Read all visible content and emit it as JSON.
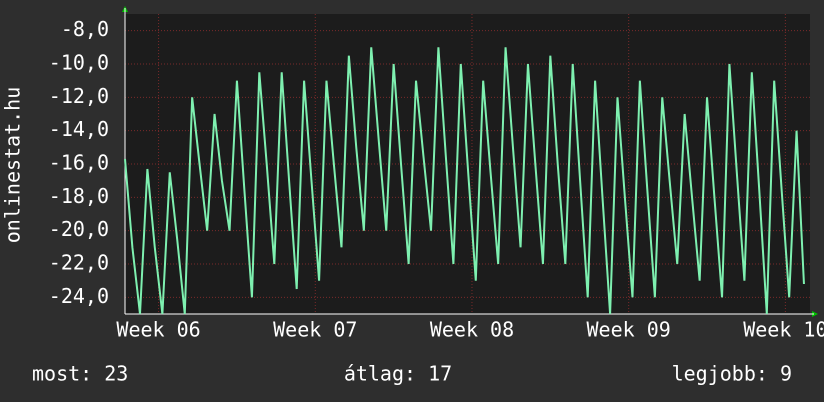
{
  "chart_data": {
    "type": "line",
    "y_label": "onlinestat.hu",
    "color": "#7ef0b0",
    "grid": true,
    "x": [
      0,
      0.33,
      0.67,
      1,
      1.33,
      1.67,
      2,
      2.33,
      2.67,
      3,
      3.33,
      3.67,
      4,
      4.33,
      4.67,
      5,
      5.33,
      5.67,
      6,
      6.33,
      6.67,
      7,
      7.33,
      7.67,
      8,
      8.33,
      8.67,
      9,
      9.33,
      9.67,
      10,
      10.33,
      10.67,
      11,
      11.33,
      11.67,
      12,
      12.33,
      12.67,
      13,
      13.33,
      13.67,
      14,
      14.33,
      14.67,
      15,
      15.33,
      15.67,
      16,
      16.33,
      16.67,
      17,
      17.33,
      17.67,
      18,
      18.33,
      18.67,
      19,
      19.33,
      19.67,
      20,
      20.33,
      20.67,
      21,
      21.33,
      21.67,
      22,
      22.33,
      22.67,
      23,
      23.33,
      23.67,
      24,
      24.33,
      24.67,
      25,
      25.33,
      25.67,
      26,
      26.33,
      26.67,
      27,
      27.33,
      27.67,
      28,
      28.33,
      28.67,
      29,
      29.33,
      29.67,
      30,
      30.33
    ],
    "values": [
      -15.7,
      -21,
      -25,
      -16.3,
      -21,
      -25,
      -16.5,
      -20.5,
      -25,
      -12,
      -16,
      -20,
      -13,
      -17,
      -20,
      -11,
      -17.5,
      -24,
      -10.5,
      -16,
      -22,
      -10.5,
      -17,
      -23.5,
      -11,
      -17,
      -23,
      -11,
      -16,
      -21,
      -9.5,
      -15,
      -20,
      -9,
      -14.5,
      -20,
      -10,
      -16,
      -22,
      -11,
      -15.5,
      -20,
      -9,
      -15.5,
      -22,
      -10,
      -16.5,
      -23,
      -11,
      -16.5,
      -22,
      -9,
      -15,
      -21,
      -10,
      -16,
      -22,
      -9.5,
      -16,
      -22,
      -10,
      -17,
      -24,
      -11,
      -18,
      -25,
      -12,
      -18,
      -24,
      -11,
      -17.5,
      -24,
      -12,
      -17,
      -22,
      -13,
      -18,
      -23,
      -12,
      -18,
      -24,
      -10,
      -16.5,
      -23,
      -10.5,
      -17.5,
      -25,
      -11,
      -17.5,
      -24,
      -14,
      -23.2
    ],
    "xlim": [
      0,
      30.6
    ],
    "xticks": [
      {
        "value": 1.5,
        "label": "Week 06"
      },
      {
        "value": 8.5,
        "label": "Week 07"
      },
      {
        "value": 15.5,
        "label": "Week 08"
      },
      {
        "value": 22.5,
        "label": "Week 09"
      },
      {
        "value": 29.5,
        "label": "Week 10"
      }
    ],
    "ylim": [
      -25,
      -7
    ],
    "yticks": [
      {
        "value": -8,
        "label": "-8,0"
      },
      {
        "value": -10,
        "label": "-10,0"
      },
      {
        "value": -12,
        "label": "-12,0"
      },
      {
        "value": -14,
        "label": "-14,0"
      },
      {
        "value": -16,
        "label": "-16,0"
      },
      {
        "value": -18,
        "label": "-18,0"
      },
      {
        "value": -20,
        "label": "-20,0"
      },
      {
        "value": -22,
        "label": "-22,0"
      },
      {
        "value": -24,
        "label": "-24,0"
      }
    ],
    "stats": [
      "most: 23",
      "átlag: 17",
      "legjobb: 9"
    ]
  }
}
